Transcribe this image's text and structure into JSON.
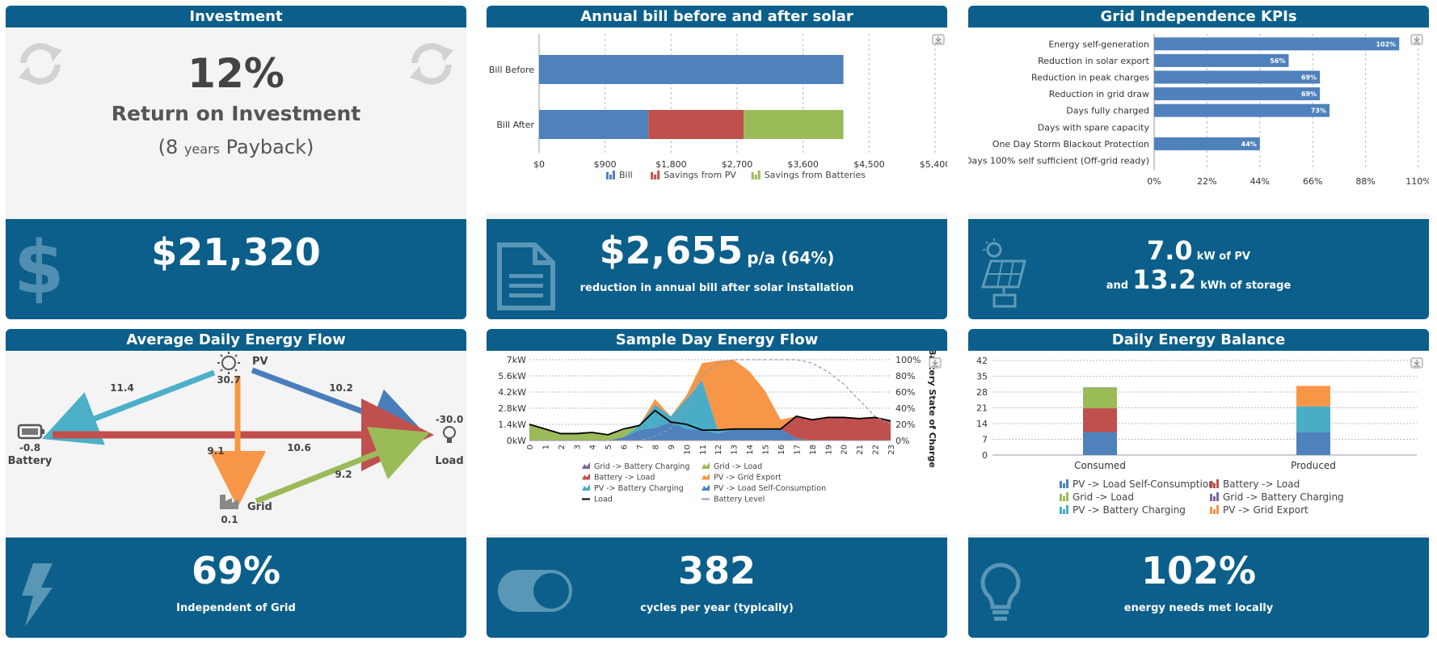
{
  "investment": {
    "title": "Investment",
    "roi_value": "12%",
    "roi_label": "Return on Investment",
    "payback_open": "(8",
    "payback_years": "years",
    "payback_close": "Payback)",
    "total_value": "$21,320",
    "icons": [
      "refresh-icon",
      "dollar-icon"
    ]
  },
  "annual_bill": {
    "title": "Annual bill before and after solar",
    "reduction_value": "$2,655",
    "reduction_suffix": "p/a (64%)",
    "reduction_label": "reduction in annual bill after solar installation",
    "icon": "document-icon"
  },
  "grid_kpis": {
    "title": "Grid Independence KPIs",
    "pv_value": "7.0",
    "pv_unit": "kW of PV",
    "storage_prefix": "and",
    "storage_value": "13.2",
    "storage_unit": "kWh of storage",
    "icon": "solar-panel-icon"
  },
  "daily_flow": {
    "title": "Average Daily Energy Flow",
    "pv_label": "PV",
    "pv_value": "30.7",
    "battery_label": "Battery",
    "battery_value": "-0.8",
    "load_label": "Load",
    "load_value": "-30.0",
    "grid_label": "Grid",
    "grid_value": "0.1",
    "flow_pv_battery": "11.4",
    "flow_pv_load": "10.2",
    "flow_battery_load": "10.6",
    "flow_pv_grid": "9.1",
    "flow_grid_load": "9.2",
    "independence_value": "69%",
    "independence_label": "Independent of Grid",
    "icon": "lightning-icon",
    "colors": {
      "pv_battery": "#4bb0c8",
      "pv_load": "#4a7ebb",
      "battery_load": "#c0504d",
      "pv_grid": "#f79646",
      "grid_load": "#9bbb59"
    }
  },
  "sample_day": {
    "title": "Sample Day Energy Flow",
    "cycles_value": "382",
    "cycles_label": "cycles per year (typically)",
    "icon": "toggle-icon"
  },
  "energy_balance": {
    "title": "Daily Energy Balance",
    "needs_value": "102%",
    "needs_label": "energy needs met locally",
    "icon": "lightbulb-icon"
  },
  "chart_data": [
    {
      "id": "bill",
      "type": "bar",
      "orientation": "horizontal",
      "stacked": true,
      "categories": [
        "Bill Before",
        "Bill After"
      ],
      "series": [
        {
          "name": "Bill",
          "color": "#4f81bd",
          "values": [
            4150,
            1490
          ]
        },
        {
          "name": "Savings from PV",
          "color": "#c0504d",
          "values": [
            0,
            1300
          ]
        },
        {
          "name": "Savings from Batteries",
          "color": "#9bbb59",
          "values": [
            0,
            1360
          ]
        }
      ],
      "xticks": [
        "$0",
        "$900",
        "$1,800",
        "$2,700",
        "$3,600",
        "$4,500",
        "$5,400"
      ],
      "xlim": [
        0,
        5400
      ],
      "legend": "bottom"
    },
    {
      "id": "kpis",
      "type": "bar",
      "orientation": "horizontal",
      "categories": [
        "Energy self-generation",
        "Reduction in solar export",
        "Reduction in peak charges",
        "Reduction in grid draw",
        "Days fully charged",
        "Days with spare capacity",
        "One Day Storm Blackout Protection",
        "Days 100% self sufficient (Off-grid ready)"
      ],
      "values": [
        102,
        56,
        69,
        69,
        73,
        0,
        44,
        0
      ],
      "data_labels": [
        "102%",
        "56%",
        "69%",
        "69%",
        "73%",
        "",
        "44%",
        ""
      ],
      "color": "#4f81bd",
      "xticks": [
        "0%",
        "22%",
        "44%",
        "66%",
        "88%",
        "110%"
      ],
      "xlim": [
        0,
        110
      ]
    },
    {
      "id": "sample",
      "type": "area",
      "x": [
        0,
        1,
        2,
        3,
        4,
        5,
        6,
        7,
        8,
        9,
        10,
        11,
        12,
        13,
        14,
        15,
        16,
        17,
        18,
        19,
        20,
        21,
        22,
        23
      ],
      "series": [
        {
          "name": "Grid -> Battery Charging",
          "color": "#8064a2",
          "values": [
            0,
            0,
            0,
            0,
            0,
            0,
            0,
            0,
            0,
            0,
            0,
            0,
            0,
            0,
            0,
            0,
            0,
            0,
            0,
            0,
            0,
            0,
            0,
            0
          ]
        },
        {
          "name": "Grid -> Load",
          "color": "#9bbb59",
          "values": [
            1.4,
            1.0,
            0.6,
            0.6,
            0.7,
            0.5,
            0.6,
            0,
            0,
            0,
            0,
            0,
            0,
            0,
            0,
            0,
            0,
            0,
            0,
            0,
            0,
            0,
            0,
            0
          ]
        },
        {
          "name": "Battery -> Load",
          "color": "#c0504d",
          "values": [
            0,
            0,
            0,
            0,
            0,
            0,
            0,
            0,
            0,
            0,
            0,
            0,
            0,
            0,
            0,
            0,
            0,
            1.9,
            1.8,
            2.0,
            2.0,
            1.9,
            2.0,
            1.7
          ]
        },
        {
          "name": "PV -> Grid Export",
          "color": "#f79646",
          "values": [
            0,
            0,
            0,
            0,
            0,
            0,
            0,
            0,
            0.5,
            0,
            0.3,
            1.5,
            6.0,
            6.0,
            5.0,
            3.3,
            0.8,
            0,
            0,
            0,
            0,
            0,
            0,
            0
          ]
        },
        {
          "name": "PV -> Battery Charging",
          "color": "#4bacc6",
          "values": [
            0,
            0,
            0,
            0,
            0,
            0,
            0,
            0.4,
            2.0,
            0.5,
            2.6,
            4.3,
            0.3,
            0,
            0,
            0,
            0,
            0,
            0,
            0,
            0,
            0,
            0,
            0
          ]
        },
        {
          "name": "PV -> Load Self-Consumption",
          "color": "#4f81bd",
          "values": [
            0,
            0,
            0,
            0,
            0,
            0,
            0.3,
            0.9,
            1.1,
            1.6,
            1.0,
            0.9,
            0.6,
            1.0,
            1.0,
            1.0,
            1.0,
            0.2,
            0,
            0,
            0,
            0,
            0,
            0
          ]
        }
      ],
      "load": {
        "name": "Load",
        "color": "#000000",
        "values": [
          1.4,
          1.0,
          0.6,
          0.6,
          0.7,
          0.5,
          1.0,
          1.3,
          2.6,
          1.6,
          1.4,
          0.9,
          0.9,
          1.0,
          1.0,
          1.0,
          1.0,
          2.1,
          1.8,
          2.0,
          2.0,
          1.9,
          2.0,
          1.7
        ]
      },
      "battery_level": {
        "name": "Battery Level",
        "color": "#8e9cc0",
        "values": [
          0,
          0,
          0,
          0,
          0,
          0,
          0,
          0,
          5,
          15,
          40,
          80,
          96,
          100,
          100,
          100,
          100,
          100,
          96,
          85,
          70,
          50,
          30,
          20
        ]
      },
      "yticks": [
        "0kW",
        "1.4kW",
        "2.8kW",
        "4.2kW",
        "5.6kW",
        "7kW"
      ],
      "y2ticks": [
        "0%",
        "20%",
        "40%",
        "60%",
        "80%",
        "100%"
      ],
      "y2label": "Battery State of Charge",
      "ylim": [
        0,
        7
      ],
      "y2lim": [
        0,
        100
      ],
      "legend": "bottom"
    },
    {
      "id": "balance",
      "type": "bar",
      "stacked": true,
      "categories": [
        "Consumed",
        "Produced"
      ],
      "series": [
        {
          "name": "PV -> Load Self-Consumption",
          "color": "#4f81bd",
          "values": [
            10.2,
            10.2
          ]
        },
        {
          "name": "Battery -> Load",
          "color": "#c0504d",
          "values": [
            10.6,
            0
          ]
        },
        {
          "name": "Grid -> Load",
          "color": "#9bbb59",
          "values": [
            9.2,
            0
          ]
        },
        {
          "name": "Grid -> Battery Charging",
          "color": "#8064a2",
          "values": [
            0.1,
            0
          ]
        },
        {
          "name": "PV -> Battery Charging",
          "color": "#4bacc6",
          "values": [
            0,
            11.4
          ]
        },
        {
          "name": "PV -> Grid Export",
          "color": "#f79646",
          "values": [
            0,
            9.1
          ]
        }
      ],
      "yticks": [
        "0",
        "7",
        "14",
        "21",
        "28",
        "35",
        "42"
      ],
      "ylim": [
        0,
        42
      ],
      "legend": "bottom"
    }
  ]
}
